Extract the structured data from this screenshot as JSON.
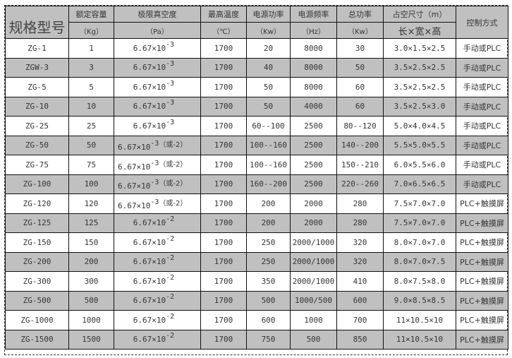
{
  "header": {
    "model": "规格型号",
    "columns": [
      {
        "title": "额定容量",
        "unit": "（Kg）"
      },
      {
        "title": "极限真空度",
        "unit": "（Pa）"
      },
      {
        "title": "最高温度",
        "unit": "（℃）"
      },
      {
        "title": "电源功率",
        "unit": "（Kw）"
      },
      {
        "title": "电源频率",
        "unit": "（Hz）"
      },
      {
        "title": "总功率",
        "unit": "（Kw）"
      },
      {
        "title": "占空尺寸（m）",
        "unit": "长×宽×高"
      }
    ],
    "control": "控制方式"
  },
  "rows": [
    {
      "model": "ZG-1",
      "capacity": "1",
      "vac_base": "6.67×10",
      "vac_exp": "-3",
      "vac_note": "",
      "temp": "1700",
      "power": "20",
      "freq": "8000",
      "total": "30",
      "size": "3.0×1.5×2.5",
      "control": "手动或PLC"
    },
    {
      "model": "ZGW-3",
      "capacity": "3",
      "vac_base": "6.67×10",
      "vac_exp": "-3",
      "vac_note": "",
      "temp": "1700",
      "power": "40",
      "freq": "8000",
      "total": "50",
      "size": "3.5×2.5×2.5",
      "control": "手动或PLC"
    },
    {
      "model": "ZG-5",
      "capacity": "5",
      "vac_base": "6.67×10",
      "vac_exp": "-3",
      "vac_note": "",
      "temp": "1700",
      "power": "50",
      "freq": "8000",
      "total": "60",
      "size": "3.5×2.5×2.5",
      "control": "手动或PLC"
    },
    {
      "model": "ZG-10",
      "capacity": "10",
      "vac_base": "6.67×10",
      "vac_exp": "-3",
      "vac_note": "",
      "temp": "1700",
      "power": "50",
      "freq": "4000",
      "total": "60",
      "size": "3.5×2.5×3.0",
      "control": "手动或PLC"
    },
    {
      "model": "ZG-25",
      "capacity": "25",
      "vac_base": "6.67×10",
      "vac_exp": "-3",
      "vac_note": "",
      "temp": "1700",
      "power": "60--100",
      "freq": "2500",
      "total": "80--120",
      "size": "5.0×4.0×4.5",
      "control": "手动或PLC"
    },
    {
      "model": "ZG-50",
      "capacity": "50",
      "vac_base": "6.67×10",
      "vac_exp": "-3",
      "vac_note": "（或-2）",
      "temp": "1700",
      "power": "100--160",
      "freq": "2500",
      "total": "140--200",
      "size": "5.5×5.0×5.5",
      "control": "手动或PLC"
    },
    {
      "model": "ZG-75",
      "capacity": "75",
      "vac_base": "6.67×10",
      "vac_exp": "-3",
      "vac_note": "（或-2）",
      "temp": "1700",
      "power": "100--160",
      "freq": "2500",
      "total": "150--210",
      "size": "6.0×5.5×6.0",
      "control": "手动或PLC"
    },
    {
      "model": "ZG-100",
      "capacity": "100",
      "vac_base": "6.67×10",
      "vac_exp": "-3",
      "vac_note": "（或-2）",
      "temp": "1700",
      "power": "160--200",
      "freq": "2500",
      "total": "220--260",
      "size": "7.0×6.5×6.5",
      "control": "手动或PLC"
    },
    {
      "model": "ZG-120",
      "capacity": "120",
      "vac_base": "6.67×10",
      "vac_exp": "-3",
      "vac_note": "（或-2）",
      "temp": "1700",
      "power": "200",
      "freq": "2000",
      "total": "280",
      "size": "7.5×7.0×7.0",
      "control": "PLC+触摸屏"
    },
    {
      "model": "ZG-125",
      "capacity": "125",
      "vac_base": "6.67×10",
      "vac_exp": "-2",
      "vac_note": "",
      "temp": "1700",
      "power": "200",
      "freq": "2000",
      "total": "280",
      "size": "7.5×7.0×7.0",
      "control": "PLC+触摸屏"
    },
    {
      "model": "ZG-150",
      "capacity": "150",
      "vac_base": "6.67×10",
      "vac_exp": "-2",
      "vac_note": "",
      "temp": "1700",
      "power": "250",
      "freq": "2000/1000",
      "total": "320",
      "size": "8.0×7.0×7.0",
      "control": "PLC+触摸屏"
    },
    {
      "model": "ZG-200",
      "capacity": "200",
      "vac_base": "6.67×10",
      "vac_exp": "-2",
      "vac_note": "",
      "temp": "1700",
      "power": "250",
      "freq": "2000/1000",
      "total": "320",
      "size": "8.0×7.0×7.5",
      "control": "PLC+触摸屏"
    },
    {
      "model": "ZG-300",
      "capacity": "300",
      "vac_base": "6.67×10",
      "vac_exp": "-2",
      "vac_note": "",
      "temp": "1700",
      "power": "350",
      "freq": "2000/1000",
      "total": "410",
      "size": "8.0×7.5×8.0",
      "control": "PLC+触摸屏"
    },
    {
      "model": "ZG-500",
      "capacity": "500",
      "vac_base": "6.67×10",
      "vac_exp": "-2",
      "vac_note": "",
      "temp": "1700",
      "power": "500",
      "freq": "1000/500",
      "total": "600",
      "size": "9.0×8.5×8.5",
      "control": "PLC+触摸屏"
    },
    {
      "model": "ZG-1000",
      "capacity": "1000",
      "vac_base": "6.67×10",
      "vac_exp": "-2",
      "vac_note": "",
      "temp": "1700",
      "power": "600",
      "freq": "1000",
      "total": "700",
      "size": "11×10.5×10",
      "control": "PLC+触摸屏"
    },
    {
      "model": "ZG-1500",
      "capacity": "1500",
      "vac_base": "6.67×10",
      "vac_exp": "-2",
      "vac_note": "",
      "temp": "1700",
      "power": "750",
      "freq": "500",
      "total": "850",
      "size": "11×10.5×10",
      "control": "PLC+触摸屏"
    }
  ]
}
